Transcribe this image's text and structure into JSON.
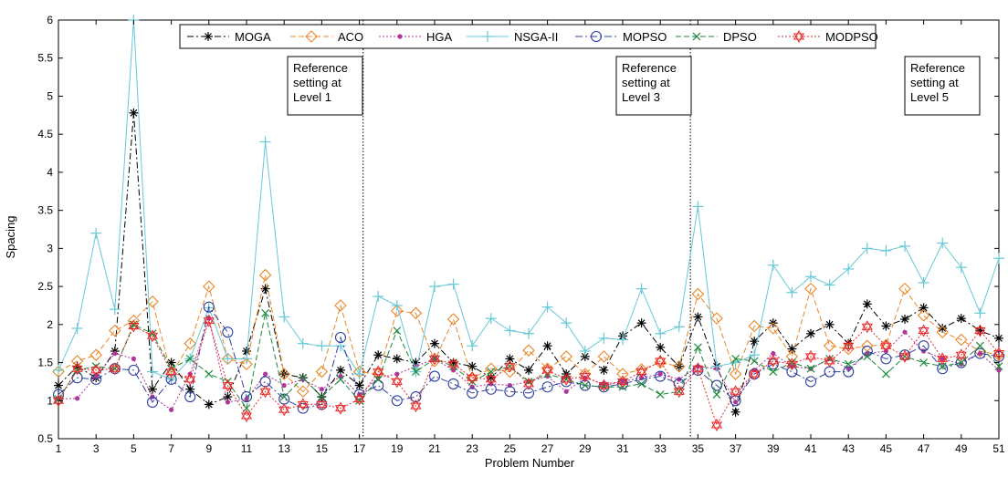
{
  "chart_data": {
    "type": "line",
    "xlabel": "Problem Number",
    "ylabel": "Spacing",
    "xlim": [
      1,
      51
    ],
    "ylim": [
      0.5,
      6
    ],
    "x_ticks": [
      "1",
      "3",
      "5",
      "7",
      "9",
      "11",
      "13",
      "15",
      "17",
      "19",
      "21",
      "23",
      "25",
      "27",
      "29",
      "31",
      "33",
      "35",
      "37",
      "39",
      "41",
      "43",
      "45",
      "47",
      "49",
      "51"
    ],
    "y_ticks": [
      "0.5",
      "1",
      "1.5",
      "2",
      "2.5",
      "3",
      "3.5",
      "4",
      "4.5",
      "5",
      "5.5",
      "6"
    ],
    "x": [
      1,
      2,
      3,
      4,
      5,
      6,
      7,
      8,
      9,
      10,
      11,
      12,
      13,
      14,
      15,
      16,
      17,
      18,
      19,
      20,
      21,
      22,
      23,
      24,
      25,
      26,
      27,
      28,
      29,
      30,
      31,
      32,
      33,
      34,
      35,
      36,
      37,
      38,
      39,
      40,
      41,
      42,
      43,
      44,
      45,
      46,
      47,
      48,
      49,
      50,
      51
    ],
    "reference_lines": [
      {
        "x": 17.2,
        "label_lines": [
          "Reference",
          "setting at",
          "Level 1"
        ]
      },
      {
        "x": 34.6,
        "label_lines": [
          "Reference",
          "setting at",
          "Level 3"
        ]
      },
      {
        "x": null,
        "label_lines": [
          "Reference",
          "setting at",
          "Level 5"
        ]
      }
    ],
    "legend_position": "top",
    "series": [
      {
        "name": "MOGA",
        "color": "#000000",
        "marker": "star",
        "dash": "7,3,2,3",
        "values": [
          1.2,
          1.45,
          1.3,
          1.65,
          4.78,
          1.15,
          1.5,
          1.15,
          0.95,
          1.05,
          1.65,
          2.47,
          1.35,
          1.3,
          1.05,
          1.4,
          1.2,
          1.6,
          1.55,
          1.5,
          1.75,
          1.5,
          1.45,
          1.3,
          1.55,
          1.4,
          1.72,
          1.35,
          1.58,
          1.4,
          1.85,
          2.02,
          1.7,
          1.45,
          2.1,
          1.45,
          0.85,
          1.78,
          2.02,
          1.68,
          1.88,
          2.0,
          1.75,
          2.27,
          1.98,
          2.07,
          2.22,
          1.95,
          2.08,
          1.92,
          1.82
        ]
      },
      {
        "name": "ACO",
        "color": "#e8882a",
        "marker": "diamond",
        "dash": "6,3",
        "values": [
          1.38,
          1.52,
          1.6,
          1.92,
          2.05,
          2.3,
          1.35,
          1.75,
          2.5,
          1.55,
          1.48,
          2.65,
          1.35,
          1.12,
          1.38,
          2.25,
          1.38,
          1.35,
          2.18,
          2.15,
          1.52,
          2.07,
          1.3,
          1.42,
          1.38,
          1.66,
          1.42,
          1.58,
          1.35,
          1.58,
          1.35,
          1.41,
          1.5,
          1.45,
          2.4,
          2.08,
          1.35,
          1.98,
          1.95,
          1.58,
          2.47,
          1.72,
          1.68,
          1.72,
          1.73,
          2.47,
          2.12,
          1.9,
          1.8,
          1.65,
          1.6
        ]
      },
      {
        "name": "HGA",
        "color": "#b0369a",
        "marker": "dot",
        "dash": "2,2",
        "values": [
          1.02,
          1.03,
          1.32,
          1.62,
          1.55,
          1.05,
          0.88,
          1.35,
          2.08,
          0.98,
          1.02,
          1.35,
          1.2,
          1.28,
          1.15,
          1.32,
          1.08,
          1.3,
          1.35,
          1.45,
          1.55,
          1.4,
          1.18,
          1.22,
          1.2,
          1.25,
          1.32,
          1.12,
          1.3,
          1.22,
          1.25,
          1.3,
          1.35,
          1.28,
          1.45,
          1.42,
          0.98,
          1.4,
          1.62,
          1.45,
          1.42,
          1.55,
          1.42,
          1.62,
          1.65,
          1.9,
          1.65,
          1.55,
          1.48,
          1.62,
          1.4
        ]
      },
      {
        "name": "NSGA-II",
        "color": "#68c8d8",
        "marker": "plus",
        "dash": "",
        "values": [
          1.4,
          1.95,
          3.2,
          2.2,
          6.0,
          1.38,
          1.28,
          1.55,
          2.22,
          1.55,
          1.55,
          4.4,
          2.1,
          1.75,
          1.72,
          1.72,
          1.35,
          2.37,
          2.25,
          1.38,
          2.5,
          2.53,
          1.72,
          2.08,
          1.92,
          1.88,
          2.23,
          2.02,
          1.65,
          1.82,
          1.8,
          2.47,
          1.88,
          1.97,
          3.55,
          1.45,
          1.5,
          1.6,
          2.78,
          2.42,
          2.63,
          2.52,
          2.73,
          3.0,
          2.97,
          3.03,
          2.55,
          3.07,
          2.75,
          2.15,
          2.87
        ]
      },
      {
        "name": "MOPSO",
        "color": "#2e3fa0",
        "marker": "circle",
        "dash": "8,3,2,3",
        "values": [
          1.08,
          1.3,
          1.28,
          1.42,
          1.4,
          0.98,
          1.28,
          1.05,
          2.23,
          1.9,
          1.05,
          1.25,
          1.02,
          0.9,
          0.95,
          1.83,
          1.08,
          1.2,
          1.0,
          1.05,
          1.32,
          1.22,
          1.1,
          1.15,
          1.12,
          1.1,
          1.18,
          1.25,
          1.2,
          1.18,
          1.22,
          1.28,
          1.32,
          1.22,
          1.4,
          1.2,
          1.0,
          1.35,
          1.48,
          1.38,
          1.25,
          1.38,
          1.38,
          1.65,
          1.55,
          1.6,
          1.72,
          1.42,
          1.5,
          1.62,
          1.58
        ]
      },
      {
        "name": "DPSO",
        "color": "#1c8a3a",
        "marker": "x",
        "dash": "6,3",
        "values": [
          1.02,
          1.4,
          1.45,
          1.42,
          2.0,
          1.88,
          1.42,
          1.55,
          1.35,
          1.25,
          0.9,
          2.15,
          1.05,
          1.3,
          1.05,
          1.28,
          1.0,
          1.28,
          1.92,
          1.38,
          1.55,
          1.45,
          1.25,
          1.38,
          1.45,
          1.25,
          1.35,
          1.28,
          1.2,
          1.18,
          1.18,
          1.22,
          1.08,
          1.12,
          1.7,
          1.08,
          1.55,
          1.52,
          1.38,
          1.5,
          1.42,
          1.55,
          1.48,
          1.58,
          1.35,
          1.58,
          1.5,
          1.45,
          1.5,
          1.72,
          1.45
        ]
      },
      {
        "name": "MODPSO",
        "color": "#e82828",
        "marker": "hexstar",
        "dash": "2,2",
        "values": [
          1.0,
          1.42,
          1.4,
          1.42,
          1.98,
          1.85,
          1.38,
          1.28,
          2.05,
          1.2,
          0.8,
          1.12,
          0.88,
          0.95,
          0.95,
          0.9,
          1.02,
          1.38,
          1.25,
          0.93,
          1.55,
          1.48,
          1.3,
          1.28,
          1.45,
          1.22,
          1.4,
          1.28,
          1.32,
          1.2,
          1.25,
          1.38,
          1.52,
          1.12,
          1.42,
          0.68,
          1.12,
          1.35,
          1.52,
          1.48,
          1.58,
          1.52,
          1.72,
          1.97,
          1.72,
          1.58,
          1.92,
          1.55,
          1.6,
          1.92,
          1.62
        ]
      }
    ]
  }
}
